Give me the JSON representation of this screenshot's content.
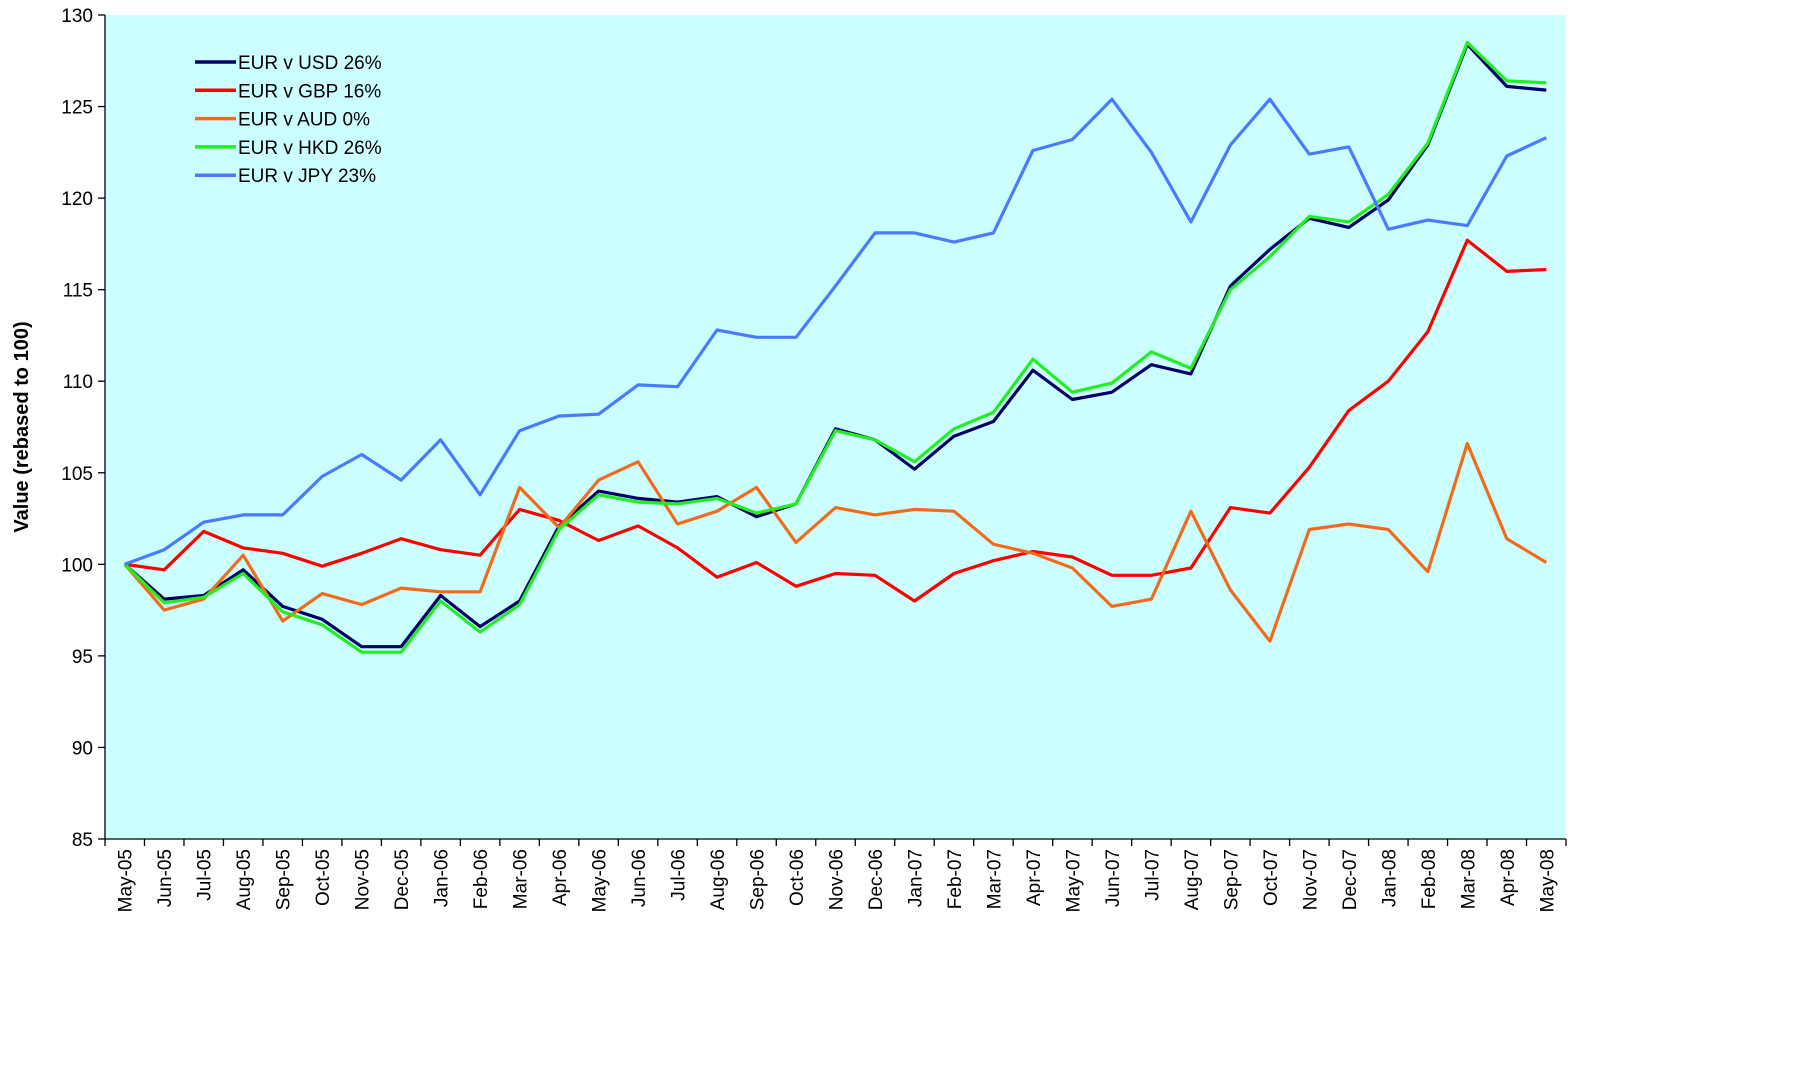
{
  "chart_data": {
    "type": "line",
    "y_label": "Value (rebased to 100)",
    "categories": [
      "May-05",
      "Jun-05",
      "Jul-05",
      "Aug-05",
      "Sep-05",
      "Oct-05",
      "Nov-05",
      "Dec-05",
      "Jan-06",
      "Feb-06",
      "Mar-06",
      "Apr-06",
      "May-06",
      "Jun-06",
      "Jul-06",
      "Aug-06",
      "Sep-06",
      "Oct-06",
      "Nov-06",
      "Dec-06",
      "Jan-07",
      "Feb-07",
      "Mar-07",
      "Apr-07",
      "May-07",
      "Jun-07",
      "Jul-07",
      "Aug-07",
      "Sep-07",
      "Oct-07",
      "Nov-07",
      "Dec-07",
      "Jan-08",
      "Feb-08",
      "Mar-08",
      "Apr-08",
      "May-08"
    ],
    "series": [
      {
        "name": "EUR v USD 26%",
        "color": "#000066",
        "values": [
          100,
          98.1,
          98.3,
          99.7,
          97.7,
          97.0,
          95.5,
          95.5,
          98.3,
          96.6,
          98.0,
          102.1,
          104.0,
          103.6,
          103.4,
          103.7,
          102.6,
          103.3,
          107.4,
          106.8,
          105.2,
          107.0,
          107.8,
          110.6,
          109.0,
          109.4,
          110.9,
          110.4,
          115.2,
          117.2,
          118.9,
          118.4,
          119.9,
          122.9,
          128.4,
          126.1,
          125.9
        ]
      },
      {
        "name": "EUR v GBP 16%",
        "color": "#ff0000",
        "values": [
          100,
          99.7,
          101.8,
          100.9,
          100.6,
          99.9,
          100.6,
          101.4,
          100.8,
          100.5,
          103.0,
          102.4,
          101.3,
          102.1,
          100.9,
          99.3,
          100.1,
          98.8,
          99.5,
          99.4,
          98.0,
          99.5,
          100.2,
          100.7,
          100.4,
          99.4,
          99.4,
          99.8,
          103.1,
          102.8,
          105.3,
          108.4,
          110.0,
          112.7,
          117.7,
          116.0,
          116.1
        ]
      },
      {
        "name": "EUR v AUD 0%",
        "color": "#f26b1d",
        "values": [
          100,
          97.5,
          98.1,
          100.5,
          96.9,
          98.4,
          97.8,
          98.7,
          98.5,
          98.5,
          104.2,
          102.0,
          104.6,
          105.6,
          102.2,
          102.9,
          104.2,
          101.2,
          103.1,
          102.7,
          103.0,
          102.9,
          101.1,
          100.6,
          99.8,
          97.7,
          98.1,
          102.9,
          98.6,
          95.8,
          101.9,
          102.2,
          101.9,
          99.6,
          106.6,
          101.4,
          100.1
        ]
      },
      {
        "name": "EUR v HKD 26%",
        "color": "#22ee22",
        "values": [
          100,
          97.9,
          98.2,
          99.5,
          97.4,
          96.7,
          95.2,
          95.2,
          98.0,
          96.3,
          97.8,
          101.9,
          103.8,
          103.4,
          103.3,
          103.6,
          102.8,
          103.3,
          107.3,
          106.8,
          105.6,
          107.4,
          108.3,
          111.2,
          109.4,
          109.9,
          111.6,
          110.7,
          115.0,
          116.8,
          119.0,
          118.7,
          120.2,
          123.0,
          128.5,
          126.4,
          126.3
        ]
      },
      {
        "name": "EUR v JPY 23%",
        "color": "#4a7bff",
        "values": [
          100,
          100.8,
          102.3,
          102.7,
          102.7,
          104.8,
          106.0,
          104.6,
          106.8,
          103.8,
          107.3,
          108.1,
          108.2,
          109.8,
          109.7,
          112.8,
          112.4,
          112.4,
          115.2,
          118.1,
          118.1,
          117.6,
          118.1,
          122.6,
          123.2,
          125.4,
          122.5,
          118.7,
          122.9,
          125.4,
          122.4,
          122.8,
          118.3,
          118.8,
          118.5,
          122.3,
          123.3
        ]
      }
    ],
    "ylim": [
      85,
      130
    ],
    "yticks": [
      85,
      90,
      95,
      100,
      105,
      110,
      115,
      120,
      125,
      130
    ],
    "grid": false,
    "legend": "upper left",
    "plot_background": "#ccffff"
  }
}
